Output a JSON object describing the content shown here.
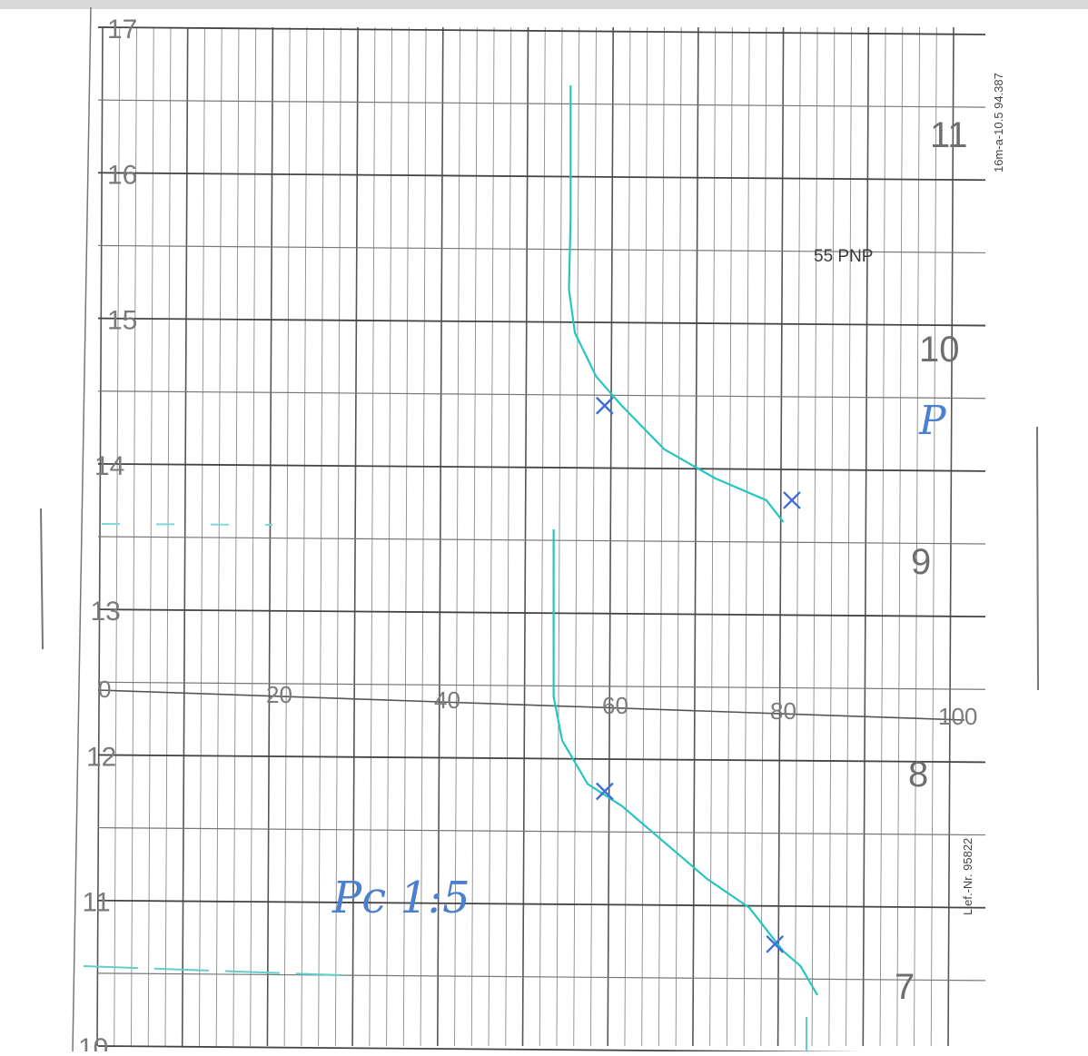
{
  "chart_data": {
    "type": "line",
    "title": "",
    "xlabel": "",
    "ylabel": "",
    "x_ticks": [
      "0",
      "20",
      "40",
      "60",
      "80",
      "100"
    ],
    "y_ticks_left": [
      "10",
      "11",
      "12",
      "13",
      "14",
      "15",
      "16",
      "17"
    ],
    "y_ticks_right": [
      "7",
      "8",
      "9",
      "10",
      "11"
    ],
    "xlim": [
      0,
      100
    ],
    "ylim": [
      10,
      17
    ],
    "grid": true,
    "printed_labels": {
      "chart_type": "55 PNP",
      "form_code": "16m-a-10.5  94.387",
      "supplier_no": "Lief.-Nr. 95822"
    },
    "annotations": {
      "upper_mark": "P",
      "lower_note": "Pc 1:5"
    },
    "line_color": "#26c6c0",
    "mark_color": "#3f6fcf",
    "series": [
      {
        "points": [
          [
            55,
            16.6
          ],
          [
            55,
            15.7
          ],
          [
            54.8,
            15.2
          ],
          [
            55.5,
            14.9
          ],
          [
            58,
            14.6
          ],
          [
            61,
            14.4
          ],
          [
            66,
            14.1
          ],
          [
            72,
            13.9
          ],
          [
            78,
            13.75
          ],
          [
            80,
            13.6
          ]
        ],
        "marks": [
          [
            59,
            14.4
          ],
          [
            81,
            13.75
          ]
        ]
      },
      {
        "points": [
          [
            53,
            13.55
          ],
          [
            53,
            12.9
          ],
          [
            53,
            12.4
          ],
          [
            54,
            12.1
          ],
          [
            57,
            11.8
          ],
          [
            61,
            11.65
          ],
          [
            66,
            11.4
          ],
          [
            71,
            11.15
          ],
          [
            76,
            10.95
          ],
          [
            80,
            10.65
          ],
          [
            82,
            10.55
          ],
          [
            84,
            10.35
          ]
        ],
        "marks": [
          [
            59,
            11.75
          ],
          [
            79,
            10.7
          ]
        ]
      }
    ]
  }
}
